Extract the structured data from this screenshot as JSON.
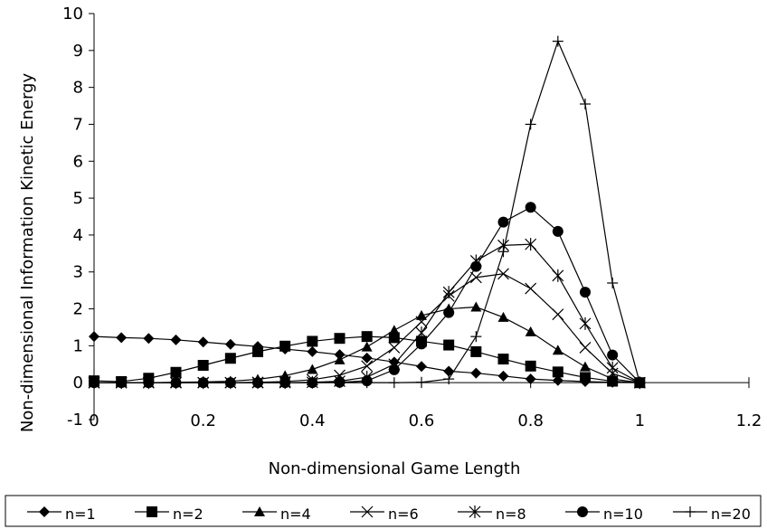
{
  "chart_data": {
    "type": "line",
    "title": "",
    "xlabel": "Non-dimensional Game Length",
    "ylabel": "Non-dimensional Information Kinetic Energy",
    "xlim": [
      0,
      1.2
    ],
    "ylim": [
      -1,
      10
    ],
    "xticks": [
      "0",
      "0.2",
      "0.4",
      "0.6",
      "0.8",
      "1",
      "1.2"
    ],
    "yticks": [
      "-1",
      "0",
      "1",
      "2",
      "3",
      "4",
      "5",
      "6",
      "7",
      "8",
      "9",
      "10"
    ],
    "grid": false,
    "legend_position": "bottom",
    "x": [
      0,
      0.05,
      0.1,
      0.15,
      0.2,
      0.25,
      0.3,
      0.35,
      0.4,
      0.45,
      0.5,
      0.55,
      0.6,
      0.65,
      0.7,
      0.75,
      0.8,
      0.85,
      0.9,
      0.95,
      1.0
    ],
    "series": [
      {
        "name": "n=1",
        "marker": "diamond",
        "values": [
          1.25,
          1.22,
          1.2,
          1.16,
          1.1,
          1.04,
          0.98,
          0.91,
          0.84,
          0.76,
          0.67,
          0.56,
          0.44,
          0.31,
          0.26,
          0.18,
          0.1,
          0.06,
          0.03,
          0.01,
          0
        ]
      },
      {
        "name": "n=2",
        "marker": "square",
        "values": [
          0.05,
          0.03,
          0.12,
          0.28,
          0.47,
          0.66,
          0.84,
          0.99,
          1.12,
          1.2,
          1.25,
          1.22,
          1.12,
          1.02,
          0.84,
          0.64,
          0.45,
          0.29,
          0.14,
          0.04,
          0
        ]
      },
      {
        "name": "n=4",
        "marker": "triangle",
        "values": [
          0,
          0,
          0,
          0.01,
          0.02,
          0.04,
          0.09,
          0.19,
          0.36,
          0.62,
          0.97,
          1.42,
          1.82,
          2.0,
          2.05,
          1.77,
          1.38,
          0.88,
          0.43,
          0.1,
          0
        ]
      },
      {
        "name": "n=6",
        "marker": "x",
        "values": [
          0,
          0,
          0,
          0,
          0,
          0,
          0.01,
          0.03,
          0.08,
          0.2,
          0.45,
          0.95,
          1.65,
          2.35,
          2.85,
          2.95,
          2.55,
          1.85,
          0.95,
          0.25,
          0
        ]
      },
      {
        "name": "n=8",
        "marker": "asterisk",
        "values": [
          0,
          0,
          0,
          0,
          0,
          0,
          0,
          0,
          0.01,
          0.04,
          0.15,
          0.5,
          1.35,
          2.45,
          3.3,
          3.72,
          3.75,
          2.9,
          1.6,
          0.4,
          0
        ]
      },
      {
        "name": "n=10",
        "marker": "circle",
        "values": [
          0,
          0,
          0,
          0,
          0,
          0,
          0,
          0,
          0,
          0.01,
          0.05,
          0.35,
          1.05,
          1.9,
          3.15,
          4.35,
          4.75,
          4.1,
          2.45,
          0.75,
          0
        ]
      },
      {
        "name": "n=20",
        "marker": "plus",
        "values": [
          0,
          0,
          0,
          0,
          0,
          0,
          0,
          0,
          0,
          0,
          0,
          0,
          0.01,
          0.1,
          1.25,
          3.55,
          7.0,
          9.25,
          7.55,
          2.7,
          0
        ]
      }
    ]
  }
}
